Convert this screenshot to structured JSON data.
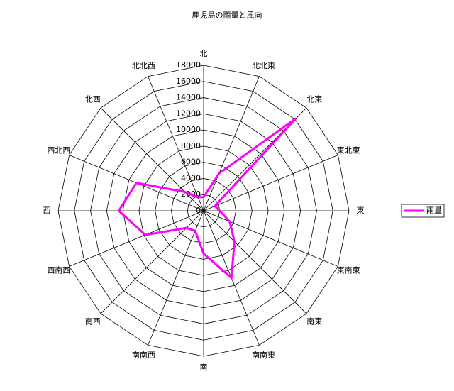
{
  "chart_data": {
    "type": "radar",
    "title": "鹿児島の雨量と風向",
    "categories": [
      "北",
      "北北東",
      "北東",
      "東北東",
      "東",
      "東南東",
      "南東",
      "南南東",
      "南",
      "南南西",
      "南西",
      "西南西",
      "西",
      "西北西",
      "北西",
      "北北西"
    ],
    "series": [
      {
        "name": "雨量",
        "color": "#ff00ff",
        "values": [
          1700,
          5000,
          16200,
          1500,
          2000,
          3500,
          5400,
          9000,
          5300,
          2700,
          3000,
          7800,
          10500,
          9000,
          3300,
          1800
        ]
      }
    ],
    "ylim": [
      0,
      18000
    ],
    "yticks": [
      0,
      2000,
      4000,
      6000,
      8000,
      10000,
      12000,
      14000,
      16000,
      18000
    ],
    "grid": true,
    "legend": "right"
  }
}
